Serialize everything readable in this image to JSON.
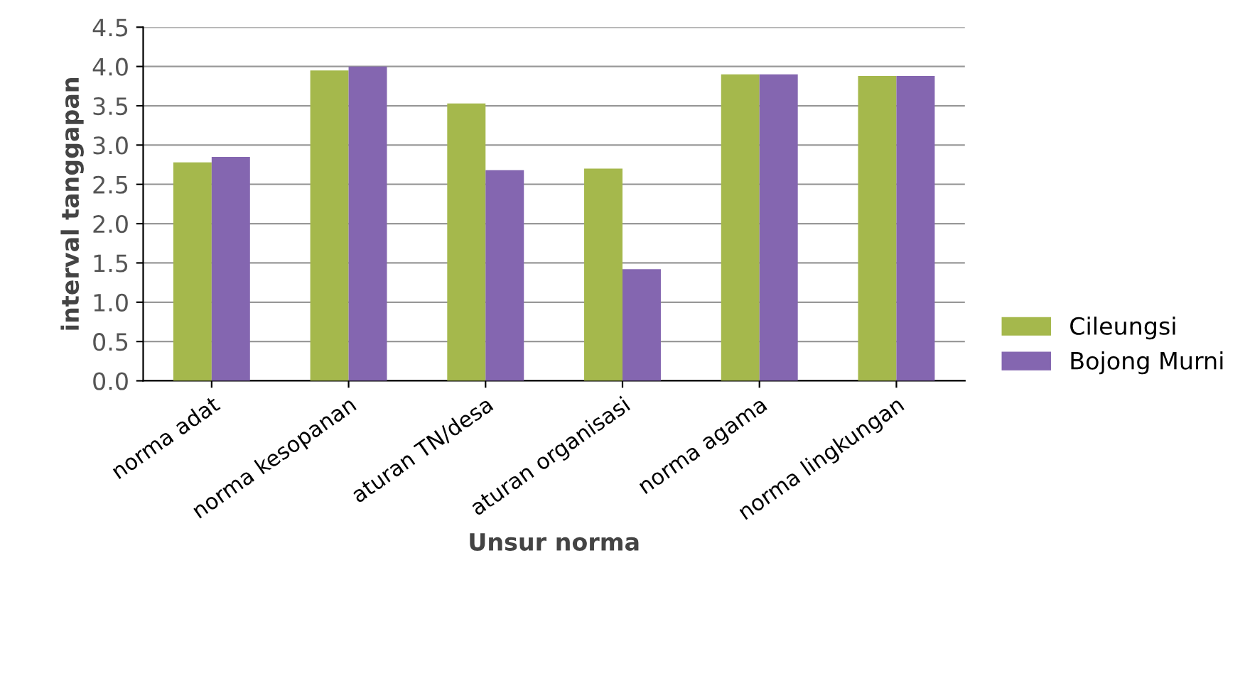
{
  "chart_data": {
    "type": "bar",
    "xlabel": "Unsur norma",
    "ylabel": "interval tanggapan",
    "categories": [
      "norma adat",
      "norma kesopanan",
      "aturan TN/desa",
      "aturan organisasi",
      "norma agama",
      "norma lingkungan"
    ],
    "series": [
      {
        "name": "Cileungsi",
        "color": "#a5b84c",
        "values": [
          2.78,
          3.95,
          3.53,
          2.7,
          3.9,
          3.88
        ]
      },
      {
        "name": "Bojong Murni",
        "color": "#8466b0",
        "values": [
          2.85,
          4.0,
          2.68,
          1.42,
          3.9,
          3.88
        ]
      }
    ],
    "ylim": [
      0,
      4.5
    ],
    "yticks": [
      {
        "value": 0,
        "label": "0.0"
      },
      {
        "value": 0.5,
        "label": "0.5"
      },
      {
        "value": 1,
        "label": "1.0"
      },
      {
        "value": 1.5,
        "label": "1.5"
      },
      {
        "value": 2,
        "label": "2.0"
      },
      {
        "value": 2.5,
        "label": "2.5"
      },
      {
        "value": 3,
        "label": "3.0"
      },
      {
        "value": 3.5,
        "label": "3.5"
      },
      {
        "value": 4,
        "label": "4.0"
      },
      {
        "value": 4.5,
        "label": "4.5"
      }
    ],
    "grid": "y",
    "legend": "right"
  }
}
